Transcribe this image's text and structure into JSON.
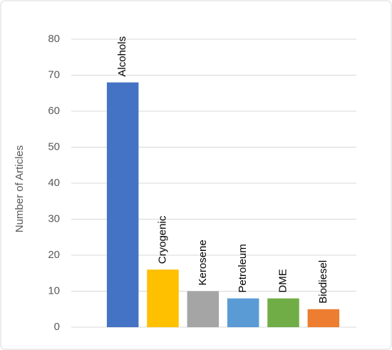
{
  "chart_data": {
    "type": "bar",
    "y_label": "Number of Articles",
    "categories": [
      "Alcohols",
      "Cryogenic",
      "Kerosene",
      "Petroleum",
      "DME",
      "Biodiesel"
    ],
    "values": [
      68,
      16,
      10,
      8,
      8,
      5
    ],
    "colors": [
      "#4472c4",
      "#ffc000",
      "#a5a5a5",
      "#5b9bd5",
      "#70ad47",
      "#ed7d31"
    ],
    "ylim": [
      0,
      80
    ],
    "yticks": [
      0,
      10,
      20,
      30,
      40,
      50,
      60,
      70,
      80
    ],
    "grid": true
  }
}
